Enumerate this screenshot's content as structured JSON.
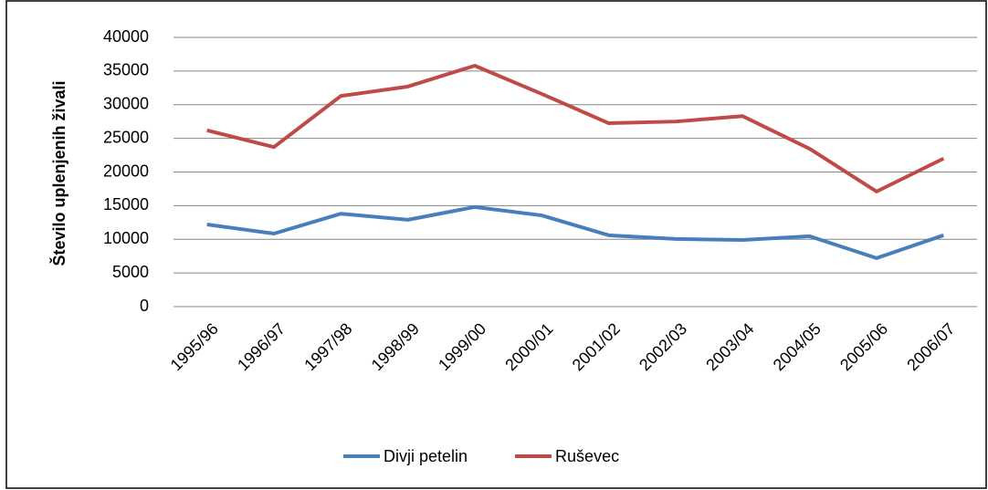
{
  "chart_data": {
    "type": "line",
    "y_axis_label": "Število uplenjenih živali",
    "categories": [
      "1995/96",
      "1996/97",
      "1997/98",
      "1998/99",
      "1999/00",
      "2000/01",
      "2001/02",
      "2002/03",
      "2003/04",
      "2004/05",
      "2005/06",
      "2006/07"
    ],
    "series": [
      {
        "name": "Divji petelin",
        "color": "#4a7ebb",
        "values": [
          12200,
          10850,
          13800,
          12900,
          14800,
          13550,
          10600,
          10050,
          9900,
          10450,
          7200,
          10600
        ]
      },
      {
        "name": "Ruševec",
        "color": "#be4b48",
        "values": [
          26200,
          23700,
          31300,
          32700,
          35800,
          31600,
          27250,
          27500,
          28300,
          23450,
          17100,
          22000
        ]
      }
    ],
    "ylim": [
      0,
      40000
    ],
    "yticks": [
      0,
      5000,
      10000,
      15000,
      20000,
      25000,
      30000,
      35000,
      40000
    ],
    "grid": true,
    "legend": "bottom"
  }
}
